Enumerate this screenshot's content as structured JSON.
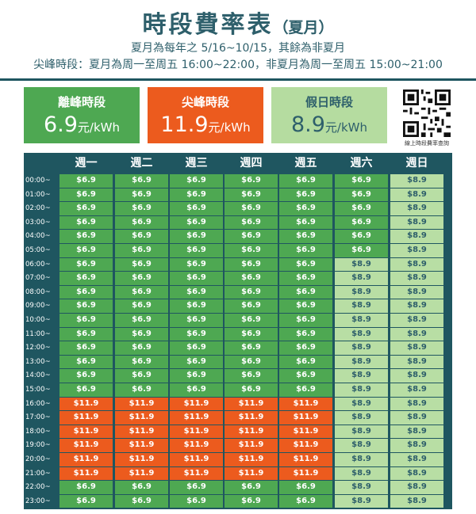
{
  "title": {
    "main": "時段費率表",
    "sub": "（夏月）"
  },
  "notes": [
    "夏月為每年之 5/16~10/15，其餘為非夏月",
    "尖峰時段：夏月為周一至周五 16:00~22:00，非夏月為周一至周五 15:00~21:00"
  ],
  "cards": [
    {
      "label": "離峰時段",
      "value": "6.9",
      "unit": "元/kWh",
      "color": "#4ea852"
    },
    {
      "label": "尖峰時段",
      "value": "11.9",
      "unit": "元/kWh",
      "color": "#ec5b1e"
    },
    {
      "label": "假日時段",
      "value": "8.9",
      "unit": "元/kWh",
      "color": "#b5dca0"
    }
  ],
  "qr_caption": "線上時段費率查詢",
  "table": {
    "days": [
      "週一",
      "週二",
      "週三",
      "週四",
      "週五",
      "週六",
      "週日"
    ],
    "times": [
      "00:00~",
      "01:00~",
      "02:00~",
      "03:00~",
      "04:00~",
      "05:00~",
      "06:00~",
      "07:00~",
      "08:00~",
      "09:00~",
      "10:00~",
      "11:00~",
      "12:00~",
      "13:00~",
      "14:00~",
      "15:00~",
      "16:00~",
      "17:00~",
      "18:00~",
      "19:00~",
      "20:00~",
      "21:00~",
      "22:00~",
      "23:00~"
    ],
    "rates": {
      "off": "$6.9",
      "peak": "$11.9",
      "holiday": "$8.9"
    },
    "rows": [
      [
        "off",
        "off",
        "off",
        "off",
        "off",
        "off",
        "holiday"
      ],
      [
        "off",
        "off",
        "off",
        "off",
        "off",
        "off",
        "holiday"
      ],
      [
        "off",
        "off",
        "off",
        "off",
        "off",
        "off",
        "holiday"
      ],
      [
        "off",
        "off",
        "off",
        "off",
        "off",
        "off",
        "holiday"
      ],
      [
        "off",
        "off",
        "off",
        "off",
        "off",
        "off",
        "holiday"
      ],
      [
        "off",
        "off",
        "off",
        "off",
        "off",
        "off",
        "holiday"
      ],
      [
        "off",
        "off",
        "off",
        "off",
        "off",
        "holiday",
        "holiday"
      ],
      [
        "off",
        "off",
        "off",
        "off",
        "off",
        "holiday",
        "holiday"
      ],
      [
        "off",
        "off",
        "off",
        "off",
        "off",
        "holiday",
        "holiday"
      ],
      [
        "off",
        "off",
        "off",
        "off",
        "off",
        "holiday",
        "holiday"
      ],
      [
        "off",
        "off",
        "off",
        "off",
        "off",
        "holiday",
        "holiday"
      ],
      [
        "off",
        "off",
        "off",
        "off",
        "off",
        "holiday",
        "holiday"
      ],
      [
        "off",
        "off",
        "off",
        "off",
        "off",
        "holiday",
        "holiday"
      ],
      [
        "off",
        "off",
        "off",
        "off",
        "off",
        "holiday",
        "holiday"
      ],
      [
        "off",
        "off",
        "off",
        "off",
        "off",
        "holiday",
        "holiday"
      ],
      [
        "off",
        "off",
        "off",
        "off",
        "off",
        "holiday",
        "holiday"
      ],
      [
        "peak",
        "peak",
        "peak",
        "peak",
        "peak",
        "holiday",
        "holiday"
      ],
      [
        "peak",
        "peak",
        "peak",
        "peak",
        "peak",
        "holiday",
        "holiday"
      ],
      [
        "peak",
        "peak",
        "peak",
        "peak",
        "peak",
        "holiday",
        "holiday"
      ],
      [
        "peak",
        "peak",
        "peak",
        "peak",
        "peak",
        "holiday",
        "holiday"
      ],
      [
        "peak",
        "peak",
        "peak",
        "peak",
        "peak",
        "holiday",
        "holiday"
      ],
      [
        "peak",
        "peak",
        "peak",
        "peak",
        "peak",
        "holiday",
        "holiday"
      ],
      [
        "off",
        "off",
        "off",
        "off",
        "off",
        "holiday",
        "holiday"
      ],
      [
        "off",
        "off",
        "off",
        "off",
        "off",
        "holiday",
        "holiday"
      ]
    ]
  }
}
